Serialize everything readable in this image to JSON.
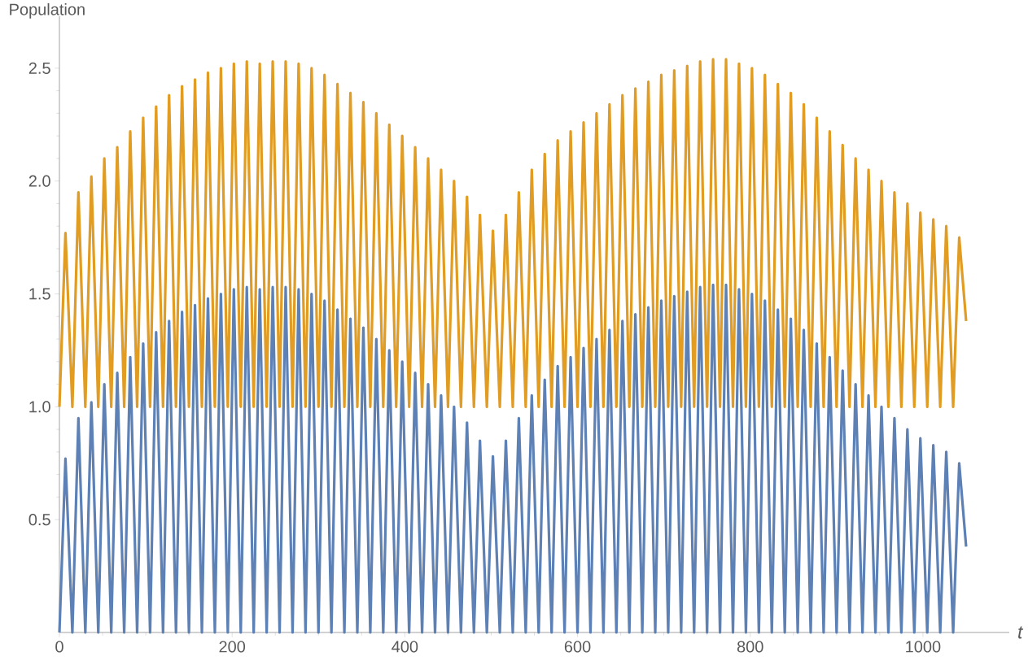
{
  "chart_data": {
    "type": "line",
    "xlabel": "t",
    "ylabel": "Population",
    "x": [
      0,
      7,
      15,
      22,
      30,
      37,
      45,
      52,
      60,
      67,
      75,
      82,
      90,
      97,
      105,
      112,
      120,
      127,
      135,
      142,
      150,
      157,
      165,
      172,
      180,
      187,
      195,
      202,
      210,
      217,
      225,
      232,
      240,
      247,
      255,
      262,
      270,
      277,
      285,
      292,
      300,
      307,
      315,
      322,
      330,
      337,
      345,
      352,
      360,
      367,
      375,
      382,
      390,
      397,
      405,
      412,
      420,
      427,
      435,
      442,
      450,
      457,
      465,
      472,
      480,
      487,
      495,
      502,
      510,
      517,
      525,
      532,
      540,
      547,
      555,
      562,
      570,
      577,
      585,
      592,
      600,
      607,
      615,
      622,
      630,
      637,
      645,
      652,
      660,
      667,
      675,
      682,
      690,
      697,
      705,
      712,
      720,
      727,
      735,
      742,
      750,
      757,
      765,
      772,
      780,
      787,
      795,
      802,
      810,
      817,
      825,
      832,
      840,
      847,
      855,
      862,
      870,
      877,
      885,
      892,
      900,
      907,
      915,
      922,
      930,
      937,
      945,
      952,
      960,
      967,
      975,
      982,
      990,
      997,
      1005,
      1012,
      1020,
      1027,
      1035,
      1042,
      1050
    ],
    "series": [
      {
        "color": "#5e81b5",
        "values": [
          0,
          0.77,
          0,
          0.95,
          0,
          1.02,
          0,
          1.1,
          0,
          1.15,
          0,
          1.22,
          0,
          1.28,
          0,
          1.33,
          0,
          1.38,
          0,
          1.42,
          0,
          1.45,
          0,
          1.48,
          0,
          1.5,
          0,
          1.52,
          0,
          1.53,
          0,
          1.52,
          0,
          1.53,
          0,
          1.53,
          0,
          1.52,
          0,
          1.5,
          0,
          1.47,
          0,
          1.43,
          0,
          1.39,
          0,
          1.35,
          0,
          1.3,
          0,
          1.25,
          0,
          1.2,
          0,
          1.15,
          0,
          1.1,
          0,
          1.05,
          0,
          1.0,
          0,
          0.93,
          0,
          0.85,
          0,
          0.78,
          0,
          0.85,
          0,
          0.95,
          0,
          1.05,
          0,
          1.12,
          0,
          1.18,
          0,
          1.22,
          0,
          1.26,
          0,
          1.3,
          0,
          1.34,
          0,
          1.38,
          0,
          1.41,
          0,
          1.44,
          0,
          1.47,
          0,
          1.49,
          0,
          1.51,
          0,
          1.53,
          0,
          1.54,
          0,
          1.54,
          0,
          1.52,
          0,
          1.5,
          0,
          1.47,
          0,
          1.43,
          0,
          1.39,
          0,
          1.34,
          0,
          1.28,
          0,
          1.22,
          0,
          1.16,
          0,
          1.1,
          0,
          1.05,
          0,
          1.0,
          0,
          0.95,
          0,
          0.9,
          0,
          0.86,
          0,
          0.83,
          0,
          0.8,
          0,
          0.75,
          0.38
        ]
      },
      {
        "color": "#e19c24",
        "values": [
          1,
          1.77,
          1,
          1.95,
          1,
          2.02,
          1,
          2.1,
          1,
          2.15,
          1,
          2.22,
          1,
          2.28,
          1,
          2.33,
          1,
          2.38,
          1,
          2.42,
          1,
          2.45,
          1,
          2.48,
          1,
          2.5,
          1,
          2.52,
          1,
          2.53,
          1,
          2.52,
          1,
          2.53,
          1,
          2.53,
          1,
          2.52,
          1,
          2.5,
          1,
          2.47,
          1,
          2.43,
          1,
          2.39,
          1,
          2.35,
          1,
          2.3,
          1,
          2.25,
          1,
          2.2,
          1,
          2.15,
          1,
          2.1,
          1,
          2.05,
          1,
          2.0,
          1,
          1.93,
          1,
          1.85,
          1,
          1.78,
          1,
          1.85,
          1,
          1.95,
          1,
          2.05,
          1,
          2.12,
          1,
          2.18,
          1,
          2.22,
          1,
          2.26,
          1,
          2.3,
          1,
          2.34,
          1,
          2.38,
          1,
          2.41,
          1,
          2.44,
          1,
          2.47,
          1,
          2.49,
          1,
          2.51,
          1,
          2.53,
          1,
          2.54,
          1,
          2.54,
          1,
          2.52,
          1,
          2.5,
          1,
          2.47,
          1,
          2.43,
          1,
          2.39,
          1,
          2.34,
          1,
          2.28,
          1,
          2.22,
          1,
          2.16,
          1,
          2.1,
          1,
          2.05,
          1,
          2.0,
          1,
          1.95,
          1,
          1.9,
          1,
          1.86,
          1,
          1.83,
          1,
          1.8,
          1,
          1.75,
          1.38
        ]
      }
    ],
    "xlim": [
      0,
      1100
    ],
    "ylim": [
      0,
      2.73
    ],
    "xticks": [
      0,
      200,
      400,
      600,
      800,
      1000
    ],
    "yticks": [
      0.5,
      {
        "value": 1,
        "label": "1.0"
      },
      1.5,
      {
        "value": 2,
        "label": "2.0"
      },
      2.5
    ]
  }
}
